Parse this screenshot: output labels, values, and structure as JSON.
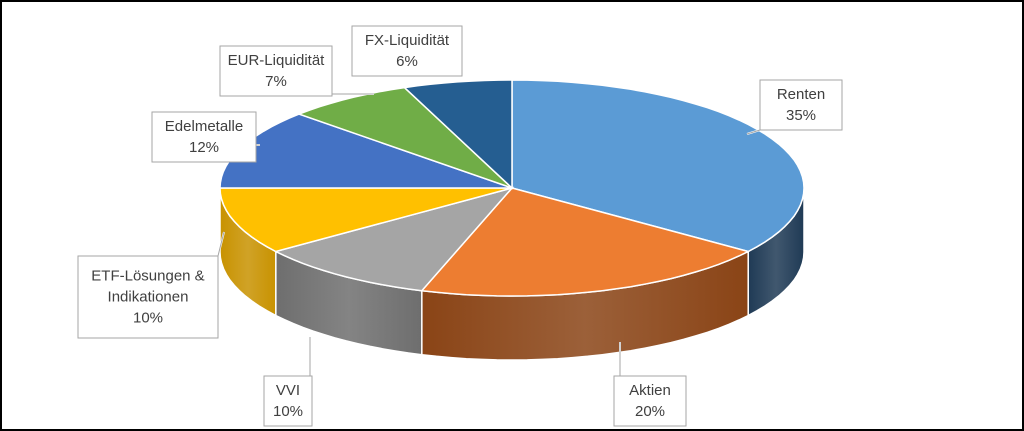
{
  "chart_data": {
    "type": "pie",
    "title": "",
    "style": "3d",
    "slices": [
      {
        "name": "Renten",
        "value": 35,
        "label": "35%",
        "color": "#5B9BD5",
        "side": "#1F3A55"
      },
      {
        "name": "Aktien",
        "value": 20,
        "label": "20%",
        "color": "#ED7D31",
        "side": "#8A4416"
      },
      {
        "name": "VVI",
        "value": 10,
        "label": "10%",
        "color": "#A5A5A5",
        "side": "#6E6E6E"
      },
      {
        "name": "ETF-Lösungen & Indikationen",
        "value": 10,
        "label": "10%",
        "color": "#FFC000",
        "side": "#C89200"
      },
      {
        "name": "Edelmetalle",
        "value": 12,
        "label": "12%",
        "color": "#4472C4",
        "side": "#2B4A82"
      },
      {
        "name": "EUR-Liquidität",
        "value": 7,
        "label": "7%",
        "color": "#70AD47",
        "side": "#4A7A2C"
      },
      {
        "name": "FX-Liquidität",
        "value": 6,
        "label": "6%",
        "color": "#255E91",
        "side": "#163B5C"
      }
    ]
  }
}
